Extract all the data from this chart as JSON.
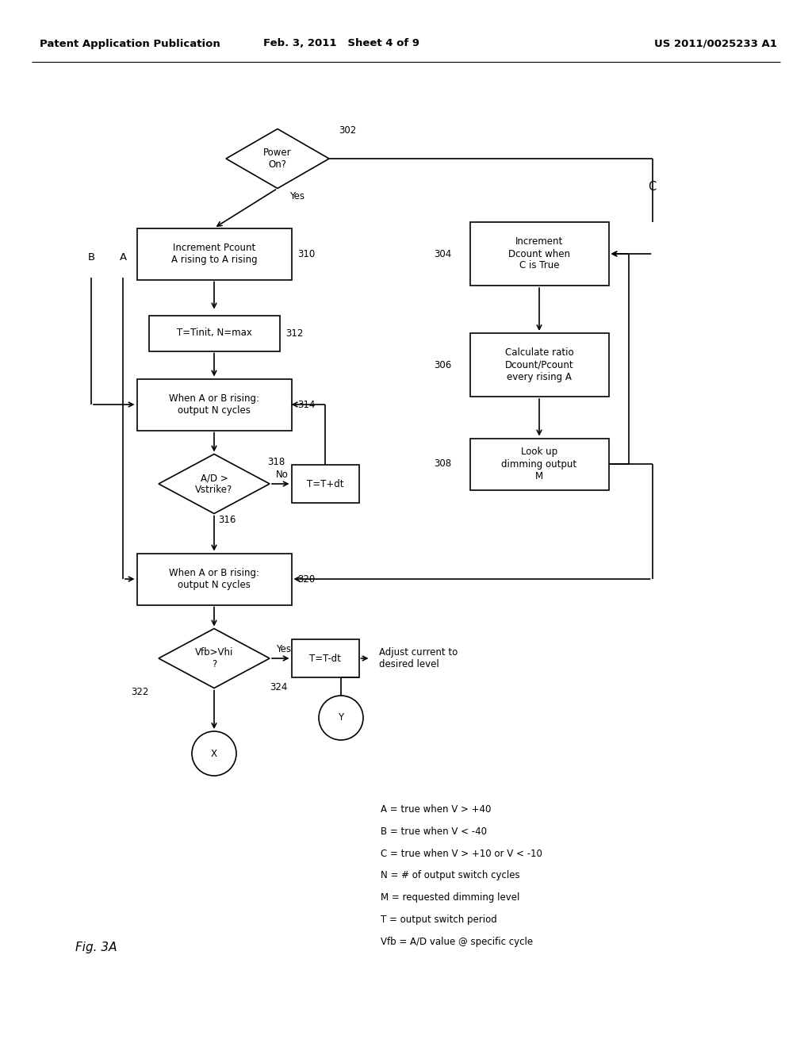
{
  "header_left": "Patent Application Publication",
  "header_mid": "Feb. 3, 2011   Sheet 4 of 9",
  "header_right": "US 2011/0025233 A1",
  "fig_label": "Fig. 3A",
  "legend_lines": [
    "A = true when V > +40",
    "B = true when V < -40",
    "C = true when V > +10 or V < -10",
    "N = # of output switch cycles",
    "M = requested dimming level",
    "T = output switch period",
    "Vfb = A/D value @ specific cycle"
  ],
  "bg_color": "#ffffff",
  "box_color": "#ffffff",
  "line_color": "#000000",
  "text_color": "#000000",
  "font_size": 8.5,
  "header_font_size": 9.5
}
